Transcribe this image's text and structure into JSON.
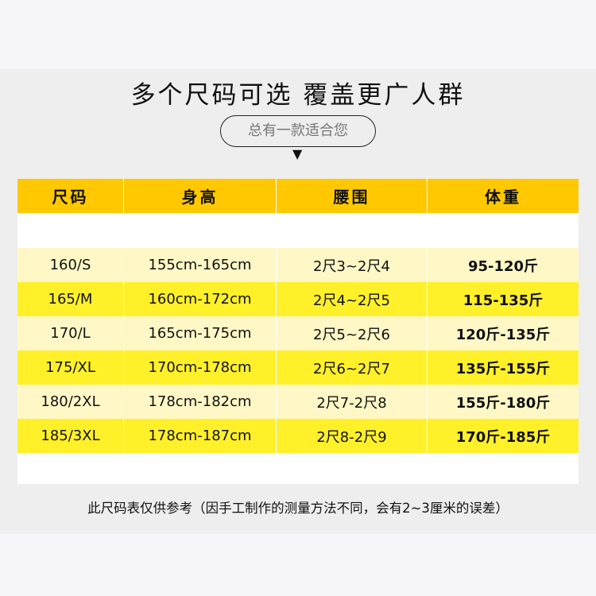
{
  "title": "多个尺码可选 覆盖更广人群",
  "subtitle": "总有一款适合您",
  "arrow_icon": "triangle-down",
  "colors": {
    "header": "#ffc800",
    "row_pale": "#fff8c6",
    "row_yellow": "#fff02a"
  },
  "table": {
    "headers": [
      "尺码",
      "身高",
      "腰围",
      "体重"
    ],
    "rows": [
      [
        "160/S",
        "155cm-165cm",
        "2尺3~2尺4",
        "95-120斤"
      ],
      [
        "165/M",
        "160cm-172cm",
        "2尺4~2尺5",
        "115-135斤"
      ],
      [
        "170/L",
        "165cm-175cm",
        "2尺5~2尺6",
        "120斤-135斤"
      ],
      [
        "175/XL",
        "170cm-178cm",
        "2尺6~2尺7",
        "135斤-155斤"
      ],
      [
        "180/2XL",
        "178cm-182cm",
        "2尺7-2尺8",
        "155斤-180斤"
      ],
      [
        "185/3XL",
        "178cm-187cm",
        "2尺8-2尺9",
        "170斤-185斤"
      ]
    ]
  },
  "note": "此尺码表仅供参考（因手工制作的测量方法不同，会有2~3厘米的误差）"
}
